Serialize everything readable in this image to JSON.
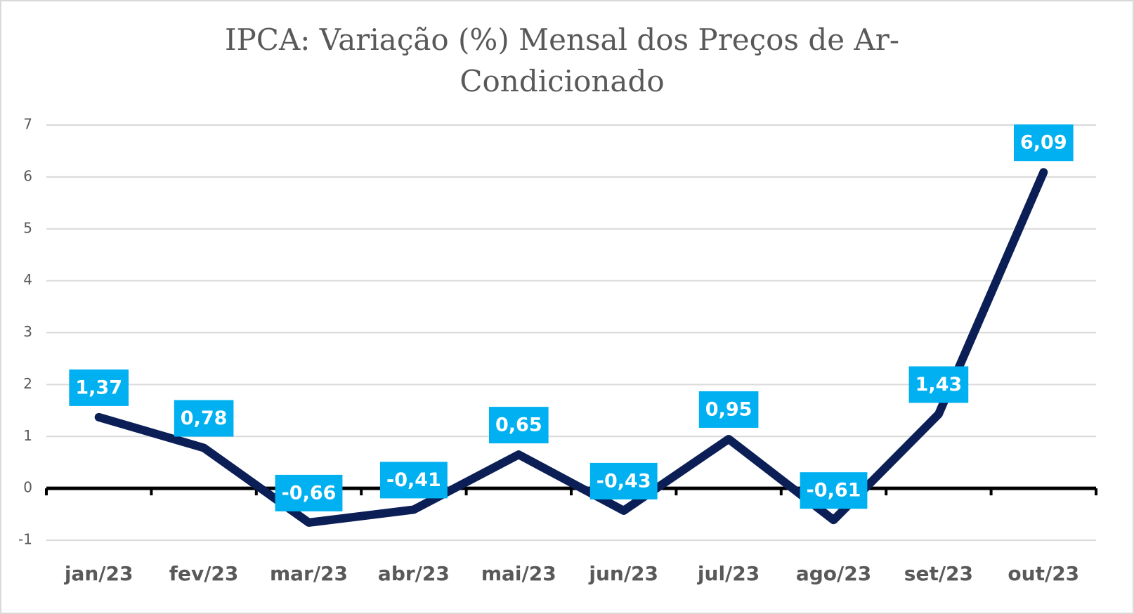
{
  "chart_data": {
    "type": "line",
    "title": [
      "IPCA: Variação (%) Mensal dos Preços de Ar-",
      "Condicionado"
    ],
    "categories": [
      "jan/23",
      "fev/23",
      "mar/23",
      "abr/23",
      "mai/23",
      "jun/23",
      "jul/23",
      "ago/23",
      "set/23",
      "out/23"
    ],
    "series": [
      {
        "name": "IPCA",
        "color": "#0b1f56",
        "values": [
          1.37,
          0.78,
          -0.66,
          -0.41,
          0.65,
          -0.43,
          0.95,
          -0.61,
          1.43,
          6.09
        ],
        "value_labels": [
          "1,37",
          "0,78",
          "-0,66",
          "-0,41",
          "0,65",
          "-0,43",
          "0,95",
          "-0,61",
          "1,43",
          "6,09"
        ]
      }
    ],
    "label_color": "#00b0f0",
    "ylim": [
      -1,
      7
    ],
    "yticks": [
      -1,
      0,
      1,
      2,
      3,
      4,
      5,
      6,
      7
    ],
    "grid": true
  }
}
